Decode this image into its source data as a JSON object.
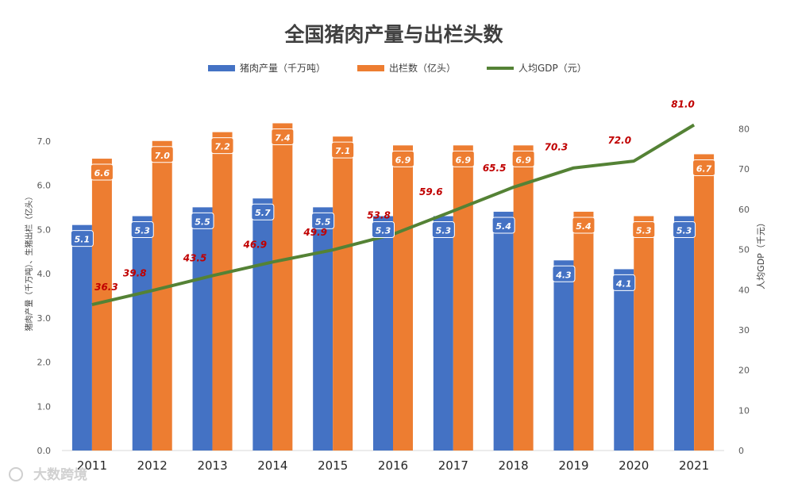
{
  "chart_data": {
    "type": "bar",
    "title": "全国猪肉产量与出栏头数",
    "categories": [
      "2011",
      "2012",
      "2013",
      "2014",
      "2015",
      "2016",
      "2017",
      "2018",
      "2019",
      "2020",
      "2021"
    ],
    "series": [
      {
        "name": "猪肉产量（千万吨）",
        "kind": "bar",
        "axis": "left",
        "color": "#4472C4",
        "values": [
          5.1,
          5.3,
          5.5,
          5.7,
          5.5,
          5.3,
          5.3,
          5.4,
          4.3,
          4.1,
          5.3
        ]
      },
      {
        "name": "出栏数（亿头）",
        "kind": "bar",
        "axis": "left",
        "color": "#ED7D31",
        "values": [
          6.6,
          7.0,
          7.2,
          7.4,
          7.1,
          6.9,
          6.9,
          6.9,
          5.4,
          5.3,
          6.7
        ]
      },
      {
        "name": "人均GDP（元）",
        "kind": "line",
        "axis": "right",
        "color": "#548235",
        "values": [
          36.3,
          39.8,
          43.5,
          46.9,
          49.9,
          53.8,
          59.6,
          65.5,
          70.3,
          72.0,
          81.0
        ]
      }
    ],
    "ylabel_left": "猪肉产量（千万吨）、生猪出栏（亿头）",
    "ylabel_right": "人均GDP（千元）",
    "ylim_left": [
      0,
      8
    ],
    "yticks_left": [
      "0.0",
      "1.0",
      "2.0",
      "3.0",
      "4.0",
      "5.0",
      "6.0",
      "7.0"
    ],
    "ylim_right": [
      0,
      88
    ],
    "yticks_right": [
      "0",
      "10",
      "20",
      "30",
      "40",
      "50",
      "60",
      "70",
      "80"
    ],
    "legend_position": "top",
    "line_label_color": "#C00000"
  },
  "watermark": "大数跨境"
}
